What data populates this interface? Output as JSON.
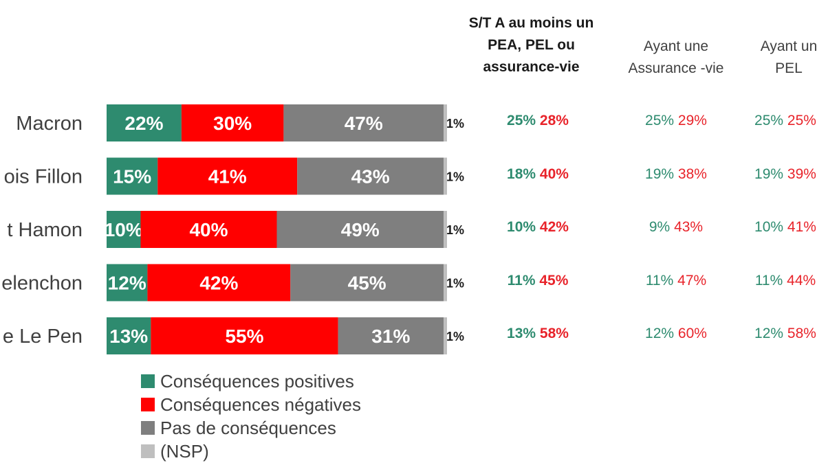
{
  "colors": {
    "positive": "#2e8b6f",
    "negative": "#ff0000",
    "none": "#7f7f7f",
    "nsp": "#bfbfbf"
  },
  "chart_data": {
    "type": "bar",
    "stacked": true,
    "orientation": "horizontal",
    "categories": [
      "Macron",
      "ois Fillon",
      "t Hamon",
      "elenchon",
      "e Le Pen"
    ],
    "series": [
      {
        "name": "Conséquences positives",
        "values": [
          22,
          15,
          10,
          12,
          13
        ]
      },
      {
        "name": "Conséquences négatives",
        "values": [
          30,
          41,
          40,
          42,
          55
        ]
      },
      {
        "name": "Pas de conséquences",
        "values": [
          47,
          43,
          49,
          45,
          31
        ]
      },
      {
        "name": "(NSP)",
        "values": [
          1,
          1,
          1,
          1,
          1
        ]
      }
    ],
    "xlim": [
      0,
      100
    ],
    "unit": "%"
  },
  "table": {
    "headers": [
      {
        "lines": [
          "S/T A au moins un",
          "PEA, PEL ou",
          "assurance-vie"
        ]
      },
      {
        "lines": [
          "Ayant une",
          "Assurance -vie"
        ]
      },
      {
        "lines": [
          "Ayant un",
          "PEL"
        ]
      }
    ],
    "rows": [
      [
        {
          "pos": "25%",
          "neg": "28%"
        },
        {
          "pos": "25%",
          "neg": "29%"
        },
        {
          "pos": "25%",
          "neg": "25%"
        }
      ],
      [
        {
          "pos": "18%",
          "neg": "40%"
        },
        {
          "pos": "19%",
          "neg": "38%"
        },
        {
          "pos": "19%",
          "neg": "39%"
        }
      ],
      [
        {
          "pos": "10%",
          "neg": "42%"
        },
        {
          "pos": "9%",
          "neg": "43%"
        },
        {
          "pos": "10%",
          "neg": "41%"
        }
      ],
      [
        {
          "pos": "11%",
          "neg": "45%"
        },
        {
          "pos": "11%",
          "neg": "47%"
        },
        {
          "pos": "11%",
          "neg": "44%"
        }
      ],
      [
        {
          "pos": "13%",
          "neg": "58%"
        },
        {
          "pos": "12%",
          "neg": "60%"
        },
        {
          "pos": "12%",
          "neg": "58%"
        }
      ]
    ]
  },
  "legend": [
    {
      "label": "Conséquences positives",
      "color": "#2e8b6f"
    },
    {
      "label": "Conséquences négatives",
      "color": "#ff0000"
    },
    {
      "label": "Pas de conséquences",
      "color": "#7f7f7f"
    },
    {
      "label": "(NSP)",
      "color": "#bfbfbf"
    }
  ]
}
